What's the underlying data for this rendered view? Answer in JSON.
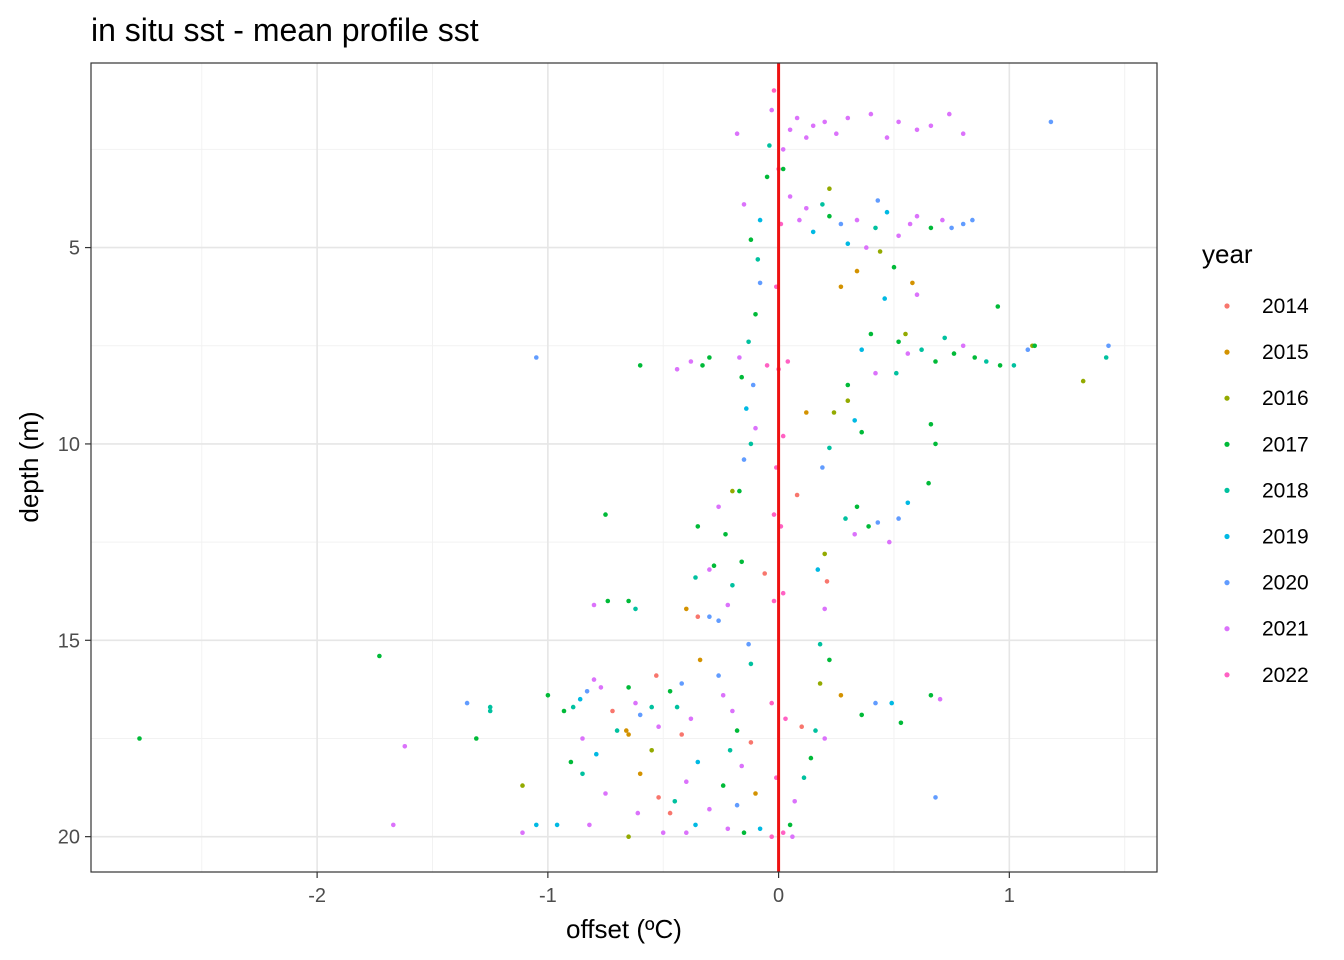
{
  "chart_data": {
    "type": "scatter",
    "title": "in situ sst - mean profile sst",
    "xlabel": "offset (ºC)",
    "ylabel": "depth (m)",
    "xlim": [
      -2.98,
      1.64
    ],
    "ylim": [
      20.9,
      0.3
    ],
    "y_reversed": true,
    "x_ticks": [
      -2,
      -1,
      0,
      1
    ],
    "x_tick_labels": [
      "-2",
      "-1",
      "0",
      "1"
    ],
    "y_ticks": [
      5,
      10,
      15,
      20
    ],
    "y_tick_labels": [
      "5",
      "10",
      "15",
      "20"
    ],
    "grid": true,
    "legend_title": "year",
    "legend_position": "right",
    "reference_line": {
      "x": 0,
      "color": "#ee1111"
    },
    "series": [
      {
        "name": "2014",
        "color": "#F8766D"
      },
      {
        "name": "2015",
        "color": "#D39200"
      },
      {
        "name": "2016",
        "color": "#93AA00"
      },
      {
        "name": "2017",
        "color": "#00BA38"
      },
      {
        "name": "2018",
        "color": "#00C19F"
      },
      {
        "name": "2019",
        "color": "#00B9E3"
      },
      {
        "name": "2020",
        "color": "#619CFF"
      },
      {
        "name": "2021",
        "color": "#DB72FB"
      },
      {
        "name": "2022",
        "color": "#FF61C3"
      }
    ],
    "points": [
      [
        -2.77,
        17.5,
        3
      ],
      [
        -1.73,
        15.4,
        3
      ],
      [
        -1.67,
        19.7,
        7
      ],
      [
        -1.62,
        17.7,
        7
      ],
      [
        -1.35,
        16.6,
        6
      ],
      [
        -1.31,
        17.5,
        3
      ],
      [
        -1.25,
        16.7,
        4
      ],
      [
        -1.25,
        16.8,
        4
      ],
      [
        -1.11,
        18.7,
        2
      ],
      [
        -1.11,
        19.9,
        7
      ],
      [
        -1.05,
        7.8,
        6
      ],
      [
        -1.05,
        19.7,
        5
      ],
      [
        -1.0,
        16.4,
        3
      ],
      [
        -0.96,
        19.7,
        5
      ],
      [
        -0.93,
        16.8,
        3
      ],
      [
        -0.89,
        16.7,
        4
      ],
      [
        -0.86,
        16.5,
        5
      ],
      [
        -0.83,
        16.3,
        6
      ],
      [
        -0.85,
        17.5,
        7
      ],
      [
        -0.9,
        18.1,
        3
      ],
      [
        -0.85,
        18.4,
        4
      ],
      [
        -0.8,
        16.0,
        7
      ],
      [
        -0.77,
        16.2,
        7
      ],
      [
        -0.75,
        18.9,
        7
      ],
      [
        -0.72,
        16.8,
        0
      ],
      [
        -0.79,
        17.9,
        5
      ],
      [
        -0.82,
        19.7,
        7
      ],
      [
        -0.7,
        17.3,
        4
      ],
      [
        -0.65,
        16.2,
        3
      ],
      [
        -0.62,
        16.6,
        7
      ],
      [
        -0.6,
        16.9,
        6
      ],
      [
        -0.55,
        16.7,
        4
      ],
      [
        -0.52,
        17.2,
        7
      ],
      [
        -0.5,
        19.9,
        7
      ],
      [
        -0.6,
        8.0,
        3
      ],
      [
        -0.65,
        14.0,
        3
      ],
      [
        -0.74,
        14.0,
        3
      ],
      [
        -0.62,
        14.2,
        4
      ],
      [
        -0.75,
        11.8,
        3
      ],
      [
        -0.8,
        14.1,
        7
      ],
      [
        -0.66,
        17.3,
        1
      ],
      [
        -0.6,
        18.4,
        1
      ],
      [
        -0.61,
        19.4,
        7
      ],
      [
        -0.65,
        20.0,
        2
      ],
      [
        -0.52,
        19.0,
        0
      ],
      [
        -0.47,
        16.3,
        3
      ],
      [
        -0.42,
        16.1,
        6
      ],
      [
        -0.44,
        16.7,
        4
      ],
      [
        -0.38,
        17.0,
        7
      ],
      [
        -0.42,
        17.4,
        0
      ],
      [
        -0.35,
        18.1,
        5
      ],
      [
        -0.4,
        18.6,
        7
      ],
      [
        -0.45,
        19.1,
        4
      ],
      [
        -0.3,
        19.3,
        7
      ],
      [
        -0.36,
        19.7,
        5
      ],
      [
        -0.4,
        19.9,
        7
      ],
      [
        -0.44,
        8.1,
        7
      ],
      [
        -0.38,
        7.9,
        7
      ],
      [
        -0.33,
        8.0,
        3
      ],
      [
        -0.3,
        7.8,
        3
      ],
      [
        -0.4,
        14.2,
        1
      ],
      [
        -0.36,
        13.4,
        4
      ],
      [
        -0.3,
        13.2,
        7
      ],
      [
        -0.28,
        13.1,
        3
      ],
      [
        -0.35,
        12.1,
        3
      ],
      [
        -0.3,
        14.4,
        6
      ],
      [
        -0.26,
        14.5,
        6
      ],
      [
        -0.22,
        14.1,
        7
      ],
      [
        -0.2,
        13.6,
        4
      ],
      [
        -0.16,
        13.0,
        3
      ],
      [
        -0.23,
        12.3,
        3
      ],
      [
        -0.26,
        11.6,
        7
      ],
      [
        -0.17,
        11.2,
        3
      ],
      [
        -0.15,
        10.4,
        6
      ],
      [
        -0.12,
        10.0,
        4
      ],
      [
        -0.1,
        9.6,
        7
      ],
      [
        -0.14,
        9.1,
        5
      ],
      [
        -0.11,
        8.5,
        6
      ],
      [
        -0.16,
        8.3,
        3
      ],
      [
        -0.17,
        7.8,
        7
      ],
      [
        -0.13,
        7.4,
        4
      ],
      [
        -0.1,
        6.7,
        3
      ],
      [
        -0.08,
        5.9,
        6
      ],
      [
        -0.09,
        5.3,
        4
      ],
      [
        -0.12,
        4.8,
        3
      ],
      [
        -0.08,
        4.3,
        5
      ],
      [
        -0.15,
        3.9,
        7
      ],
      [
        -0.18,
        2.1,
        7
      ],
      [
        -0.04,
        2.4,
        4
      ],
      [
        -0.05,
        3.2,
        3
      ],
      [
        -0.03,
        1.5,
        7
      ],
      [
        -0.02,
        1.0,
        8
      ],
      [
        -0.26,
        15.9,
        6
      ],
      [
        -0.24,
        16.4,
        7
      ],
      [
        -0.2,
        16.8,
        7
      ],
      [
        -0.18,
        17.3,
        3
      ],
      [
        -0.21,
        17.8,
        4
      ],
      [
        -0.16,
        18.2,
        7
      ],
      [
        -0.24,
        18.7,
        3
      ],
      [
        -0.18,
        19.2,
        6
      ],
      [
        -0.22,
        19.8,
        7
      ],
      [
        -0.15,
        19.9,
        3
      ],
      [
        -0.12,
        15.6,
        4
      ],
      [
        -0.13,
        15.1,
        6
      ],
      [
        0.05,
        2.0,
        7
      ],
      [
        0.08,
        1.7,
        7
      ],
      [
        0.12,
        2.2,
        7
      ],
      [
        0.15,
        1.9,
        7
      ],
      [
        0.2,
        1.8,
        7
      ],
      [
        0.25,
        2.1,
        7
      ],
      [
        0.3,
        1.7,
        7
      ],
      [
        0.4,
        1.6,
        7
      ],
      [
        0.47,
        2.2,
        7
      ],
      [
        0.52,
        1.8,
        7
      ],
      [
        0.6,
        2.0,
        7
      ],
      [
        0.66,
        1.9,
        7
      ],
      [
        0.74,
        1.6,
        7
      ],
      [
        0.8,
        2.1,
        7
      ],
      [
        1.18,
        1.8,
        6
      ],
      [
        0.02,
        2.5,
        7
      ],
      [
        0.02,
        3.0,
        3
      ],
      [
        0.05,
        3.7,
        7
      ],
      [
        0.09,
        4.3,
        7
      ],
      [
        0.12,
        4.0,
        7
      ],
      [
        0.15,
        4.6,
        5
      ],
      [
        0.19,
        3.9,
        4
      ],
      [
        0.22,
        4.2,
        3
      ],
      [
        0.27,
        4.4,
        6
      ],
      [
        0.3,
        4.9,
        5
      ],
      [
        0.34,
        4.3,
        7
      ],
      [
        0.38,
        5.0,
        7
      ],
      [
        0.42,
        4.5,
        4
      ],
      [
        0.47,
        4.1,
        5
      ],
      [
        0.52,
        4.7,
        7
      ],
      [
        0.57,
        4.4,
        7
      ],
      [
        0.6,
        4.2,
        7
      ],
      [
        0.66,
        4.5,
        3
      ],
      [
        0.71,
        4.3,
        7
      ],
      [
        0.75,
        4.5,
        6
      ],
      [
        0.8,
        4.4,
        6
      ],
      [
        0.84,
        4.3,
        6
      ],
      [
        0.22,
        3.5,
        2
      ],
      [
        0.43,
        3.8,
        6
      ],
      [
        0.34,
        5.6,
        1
      ],
      [
        0.44,
        5.1,
        2
      ],
      [
        0.5,
        5.5,
        3
      ],
      [
        0.58,
        5.9,
        1
      ],
      [
        0.6,
        6.2,
        7
      ],
      [
        0.46,
        6.3,
        5
      ],
      [
        0.95,
        6.5,
        3
      ],
      [
        0.4,
        7.2,
        3
      ],
      [
        0.36,
        7.6,
        5
      ],
      [
        0.52,
        7.4,
        3
      ],
      [
        0.56,
        7.7,
        7
      ],
      [
        0.62,
        7.6,
        4
      ],
      [
        0.68,
        7.9,
        3
      ],
      [
        0.72,
        7.3,
        4
      ],
      [
        0.76,
        7.7,
        3
      ],
      [
        0.8,
        7.5,
        7
      ],
      [
        0.85,
        7.8,
        3
      ],
      [
        0.9,
        7.9,
        4
      ],
      [
        0.96,
        8.0,
        3
      ],
      [
        1.02,
        8.0,
        4
      ],
      [
        1.08,
        7.6,
        6
      ],
      [
        1.1,
        7.5,
        2
      ],
      [
        1.11,
        7.5,
        3
      ],
      [
        1.32,
        8.4,
        2
      ],
      [
        1.43,
        7.5,
        6
      ],
      [
        1.42,
        7.8,
        4
      ],
      [
        0.51,
        8.2,
        4
      ],
      [
        0.42,
        8.2,
        7
      ],
      [
        0.3,
        8.5,
        3
      ],
      [
        0.24,
        9.2,
        2
      ],
      [
        0.33,
        9.4,
        5
      ],
      [
        0.36,
        9.7,
        3
      ],
      [
        0.22,
        10.1,
        4
      ],
      [
        0.19,
        10.6,
        6
      ],
      [
        0.66,
        9.5,
        3
      ],
      [
        0.68,
        10.0,
        3
      ],
      [
        0.65,
        11.0,
        3
      ],
      [
        0.34,
        11.6,
        3
      ],
      [
        0.29,
        11.9,
        4
      ],
      [
        0.33,
        12.3,
        7
      ],
      [
        0.39,
        12.1,
        3
      ],
      [
        0.43,
        12.0,
        6
      ],
      [
        0.48,
        12.5,
        7
      ],
      [
        0.52,
        11.9,
        6
      ],
      [
        0.56,
        11.5,
        5
      ],
      [
        0.2,
        12.8,
        2
      ],
      [
        0.17,
        13.2,
        5
      ],
      [
        0.21,
        13.5,
        0
      ],
      [
        0.2,
        14.2,
        7
      ],
      [
        0.18,
        15.1,
        4
      ],
      [
        0.22,
        15.5,
        3
      ],
      [
        0.27,
        16.4,
        1
      ],
      [
        0.36,
        16.9,
        3
      ],
      [
        0.42,
        16.6,
        6
      ],
      [
        0.49,
        16.6,
        5
      ],
      [
        0.53,
        17.1,
        3
      ],
      [
        0.66,
        16.4,
        3
      ],
      [
        0.7,
        16.5,
        7
      ],
      [
        0.68,
        19.0,
        6
      ],
      [
        0.16,
        17.3,
        4
      ],
      [
        0.2,
        17.5,
        7
      ],
      [
        0.14,
        18.0,
        3
      ],
      [
        0.11,
        18.5,
        4
      ],
      [
        0.07,
        19.1,
        7
      ],
      [
        0.05,
        19.7,
        3
      ],
      [
        0.06,
        20.0,
        7
      ],
      [
        -0.03,
        20.0,
        8
      ],
      [
        0.02,
        19.9,
        8
      ],
      [
        -0.08,
        19.8,
        5
      ],
      [
        -0.05,
        8.0,
        8
      ],
      [
        0.0,
        8.1,
        8
      ],
      [
        0.04,
        7.9,
        8
      ],
      [
        -0.02,
        11.8,
        8
      ],
      [
        0.01,
        12.1,
        8
      ],
      [
        -0.02,
        14.0,
        8
      ],
      [
        0.02,
        13.8,
        8
      ],
      [
        -0.03,
        16.6,
        8
      ],
      [
        0.03,
        17.0,
        8
      ],
      [
        -0.01,
        18.5,
        8
      ],
      [
        0.01,
        4.4,
        8
      ],
      [
        -0.01,
        6.0,
        8
      ],
      [
        0.0,
        3.0,
        8
      ],
      [
        0.02,
        9.8,
        8
      ],
      [
        -0.01,
        10.6,
        8
      ],
      [
        -0.35,
        14.4,
        0
      ],
      [
        -0.12,
        17.6,
        0
      ],
      [
        0.1,
        17.2,
        0
      ],
      [
        -0.47,
        19.4,
        0
      ],
      [
        -0.53,
        15.9,
        0
      ],
      [
        0.08,
        11.3,
        0
      ],
      [
        -0.06,
        13.3,
        0
      ],
      [
        -0.34,
        15.5,
        1
      ],
      [
        -0.65,
        17.4,
        1
      ],
      [
        0.27,
        6.0,
        1
      ],
      [
        0.12,
        9.2,
        1
      ],
      [
        -0.1,
        18.9,
        1
      ],
      [
        -0.2,
        11.2,
        2
      ],
      [
        0.3,
        8.9,
        2
      ],
      [
        0.18,
        16.1,
        2
      ],
      [
        -0.55,
        17.8,
        2
      ],
      [
        0.55,
        7.2,
        2
      ]
    ]
  }
}
